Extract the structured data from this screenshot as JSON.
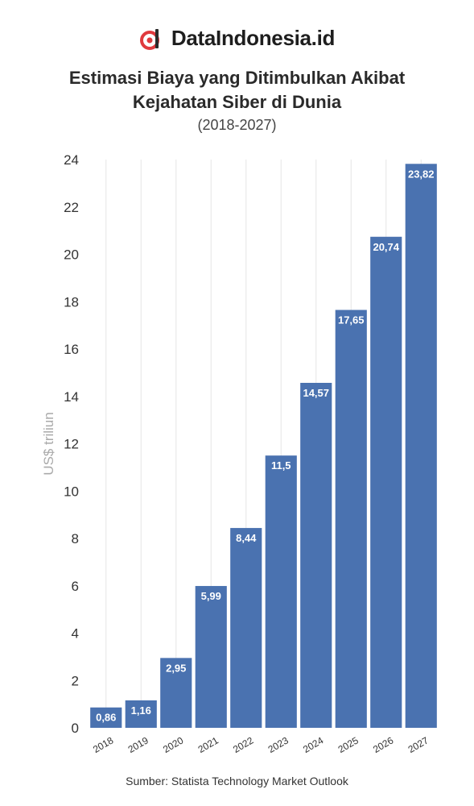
{
  "brand": {
    "name": "DataIndonesia.id",
    "logo_icon": "datainndonesia-logo-icon",
    "logo_color": "#e03a3e"
  },
  "header": {
    "title_line1": "Estimasi Biaya yang Ditimbulkan Akibat",
    "title_line2": "Kejahatan Siber di Dunia",
    "subtitle": "(2018-2027)"
  },
  "footer": {
    "source": "Sumber: Statista Technology Market Outlook"
  },
  "colors": {
    "bar": "#4a72b0",
    "bar_label": "#ffffff",
    "grid": "#e6e6e6",
    "axis_text": "#333333",
    "ylabel": "#aaaaaa"
  },
  "chart_data": {
    "type": "bar",
    "categories": [
      "2018",
      "2019",
      "2020",
      "2021",
      "2022",
      "2023",
      "2024",
      "2025",
      "2026",
      "2027"
    ],
    "values": [
      0.86,
      1.16,
      2.95,
      5.99,
      8.44,
      11.5,
      14.57,
      17.65,
      20.74,
      23.82
    ],
    "value_labels": [
      "0,86",
      "1,16",
      "2,95",
      "5,99",
      "8,44",
      "11,5",
      "14,57",
      "17,65",
      "20,74",
      "23,82"
    ],
    "ylabel": "US$ triliun",
    "xlabel": "",
    "ylim": [
      0,
      24
    ],
    "yticks": [
      0,
      2,
      4,
      6,
      8,
      10,
      12,
      14,
      16,
      18,
      20,
      22,
      24
    ],
    "grid": "vertical"
  }
}
